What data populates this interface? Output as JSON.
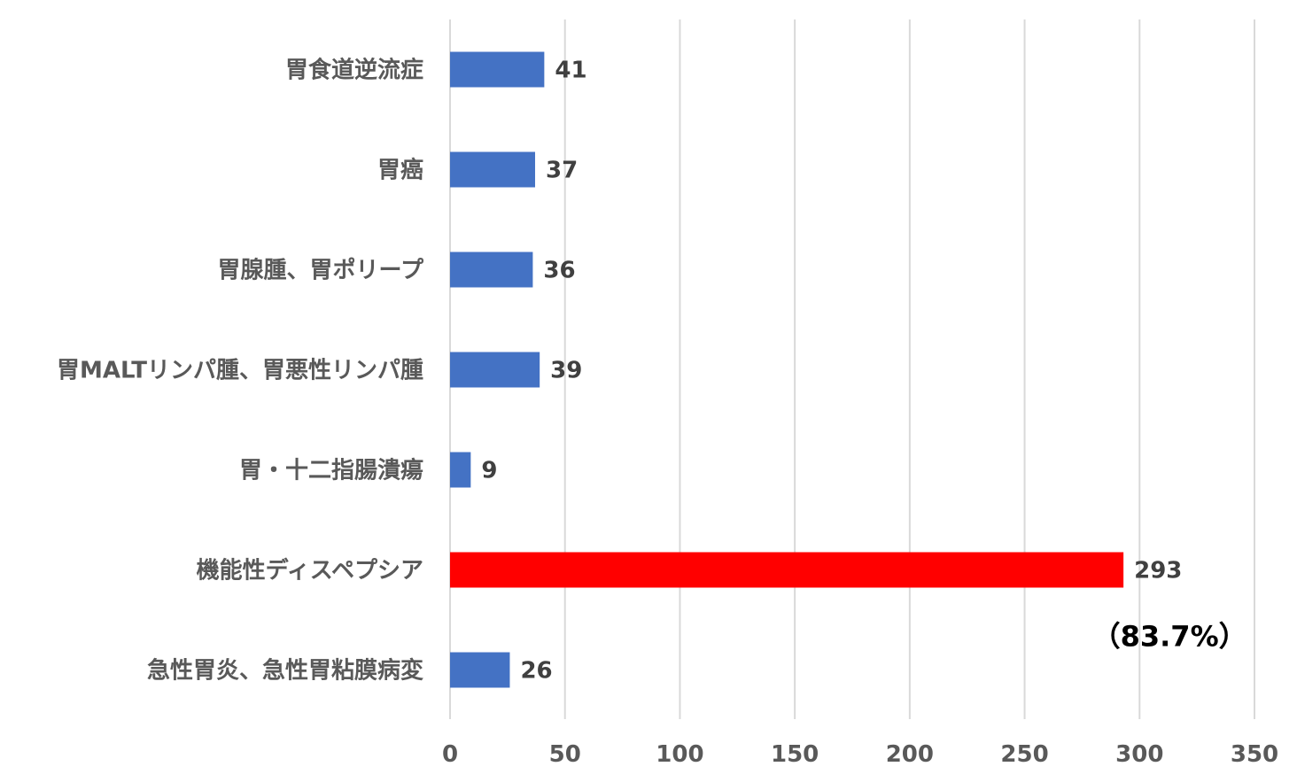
{
  "chart_data": {
    "type": "bar",
    "orientation": "horizontal",
    "categories": [
      "胃食道逆流症",
      "胃癌",
      "胃腺腫、胃ポリープ",
      "胃MALTリンパ腫、胃悪性リンパ腫",
      "胃・十二指腸潰瘍",
      "機能性ディスペプシア",
      "急性胃炎、急性胃粘膜病変"
    ],
    "values": [
      41,
      37,
      36,
      39,
      9,
      293,
      26
    ],
    "value_labels": [
      "41",
      "37",
      "36",
      "39",
      "9",
      "293",
      "26"
    ],
    "bar_colors": [
      "#4472c4",
      "#4472c4",
      "#4472c4",
      "#4472c4",
      "#4472c4",
      "#ff0000",
      "#4472c4"
    ],
    "xlim": [
      0,
      350
    ],
    "x_ticks": [
      0,
      50,
      100,
      150,
      200,
      250,
      300,
      350
    ],
    "x_tick_labels": [
      "0",
      "50",
      "100",
      "150",
      "200",
      "250",
      "300",
      "350"
    ],
    "grid": true,
    "grid_axis": "x",
    "legend": false,
    "annotation": {
      "text": "（83.7%）",
      "attached_to_category": "機能性ディスペプシア",
      "placement": "below-right of bar"
    }
  }
}
